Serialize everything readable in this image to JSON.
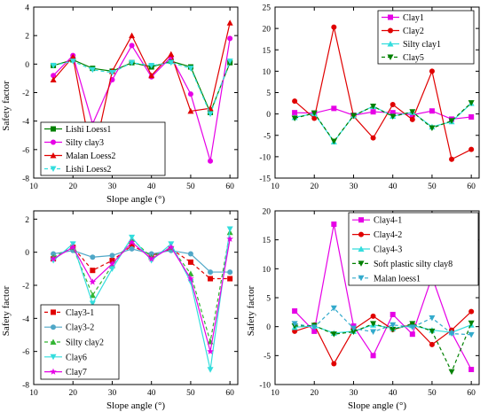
{
  "chart_data": [
    {
      "type": "line",
      "xlabel": "Slope angle  (°)",
      "ylabel": "Safety factor",
      "xlim": [
        10,
        62
      ],
      "ylim": [
        -8,
        4
      ],
      "xticks": [
        10,
        20,
        30,
        40,
        50,
        60
      ],
      "yticks": [
        -8,
        -6,
        -4,
        -2,
        0,
        2,
        4
      ],
      "legend_position": "bottom-left",
      "series": [
        {
          "name": "Lishi Loess1",
          "color": "#008000",
          "marker": "square",
          "dash": "",
          "x": [
            15,
            20,
            25,
            30,
            35,
            40,
            45,
            50,
            55,
            60
          ],
          "y": [
            -0.1,
            0.3,
            -0.3,
            -0.5,
            0.1,
            -0.2,
            0.2,
            -0.2,
            -3.4,
            0.1
          ]
        },
        {
          "name": "Silty clay3",
          "color": "#e600e6",
          "marker": "circle",
          "dash": "",
          "x": [
            15,
            20,
            25,
            30,
            35,
            40,
            45,
            50,
            55,
            60
          ],
          "y": [
            -0.8,
            0.6,
            -4.2,
            -1.1,
            1.3,
            -0.9,
            0.5,
            -2.1,
            -6.8,
            1.8
          ]
        },
        {
          "name": "Malan Loess2",
          "color": "#e00000",
          "marker": "triangle",
          "dash": "",
          "x": [
            15,
            20,
            25,
            30,
            35,
            40,
            45,
            50,
            55,
            60
          ],
          "y": [
            -1.1,
            0.5,
            -6.8,
            -0.5,
            2.0,
            -0.8,
            0.7,
            -3.3,
            -3.1,
            2.9
          ]
        },
        {
          "name": "Lishi Loess2",
          "color": "#33dddd",
          "marker": "triangle-down",
          "dash": "4,3",
          "x": [
            15,
            20,
            25,
            30,
            35,
            40,
            45,
            50,
            55,
            60
          ],
          "y": [
            -0.1,
            0.2,
            -0.4,
            -0.6,
            0.1,
            -0.1,
            0.1,
            -0.3,
            -3.5,
            0.2
          ]
        }
      ]
    },
    {
      "type": "line",
      "xlabel": "",
      "ylabel": "",
      "xlim": [
        10,
        62
      ],
      "ylim": [
        -15,
        25
      ],
      "xticks": [
        10,
        20,
        30,
        40,
        50,
        60
      ],
      "yticks": [
        -15,
        -10,
        -5,
        0,
        5,
        10,
        15,
        20,
        25
      ],
      "legend_position": "top-right",
      "series": [
        {
          "name": "Clay1",
          "color": "#e600e6",
          "marker": "square",
          "dash": "",
          "x": [
            15,
            20,
            25,
            30,
            35,
            40,
            45,
            50,
            55,
            60
          ],
          "y": [
            0.3,
            0.2,
            1.3,
            -0.3,
            0.5,
            0.3,
            -0.2,
            0.7,
            -1.2,
            -0.7
          ]
        },
        {
          "name": "Clay2",
          "color": "#e00000",
          "marker": "circle",
          "dash": "",
          "x": [
            15,
            20,
            25,
            30,
            35,
            40,
            45,
            50,
            55,
            60
          ],
          "y": [
            3.0,
            -1.0,
            20.3,
            -0.5,
            -5.6,
            2.2,
            -1.3,
            10.0,
            -10.6,
            -8.3
          ]
        },
        {
          "name": "Silty clay1",
          "color": "#33dddd",
          "marker": "triangle",
          "dash": "",
          "x": [
            15,
            20,
            25,
            30,
            35,
            40,
            45,
            50,
            55,
            60
          ],
          "y": [
            -0.8,
            0.1,
            -6.5,
            -0.4,
            1.8,
            -0.5,
            0.4,
            -3.0,
            -1.8,
            2.5
          ]
        },
        {
          "name": "Clay5",
          "color": "#008000",
          "marker": "triangle-down",
          "dash": "4,3",
          "x": [
            15,
            20,
            25,
            30,
            35,
            40,
            45,
            50,
            55,
            60
          ],
          "y": [
            -1.0,
            0.2,
            -6.4,
            -0.4,
            1.8,
            -0.6,
            0.5,
            -3.3,
            -1.6,
            2.6
          ]
        }
      ]
    },
    {
      "type": "line",
      "xlabel": "Slope angle  (°)",
      "ylabel": "Safety factor",
      "xlim": [
        10,
        62
      ],
      "ylim": [
        -8,
        2.5
      ],
      "xticks": [
        10,
        20,
        30,
        40,
        50,
        60
      ],
      "yticks": [
        -8,
        -6,
        -4,
        -2,
        0,
        2
      ],
      "legend_position": "bottom-left",
      "series": [
        {
          "name": "Clay3-1",
          "color": "#e00000",
          "marker": "square",
          "dash": "4,3",
          "x": [
            15,
            20,
            25,
            30,
            35,
            40,
            45,
            50,
            55,
            60
          ],
          "y": [
            -0.4,
            0.3,
            -1.1,
            -0.5,
            0.4,
            -0.2,
            0.2,
            -0.6,
            -1.6,
            -1.6
          ]
        },
        {
          "name": "Clay3-2",
          "color": "#4fa7c7",
          "marker": "circle",
          "dash": "",
          "x": [
            15,
            20,
            25,
            30,
            35,
            40,
            45,
            50,
            55,
            60
          ],
          "y": [
            -0.1,
            0.1,
            -0.3,
            -0.2,
            0.2,
            -0.1,
            0.1,
            -0.1,
            -1.2,
            -1.2
          ]
        },
        {
          "name": "Silty clay2",
          "color": "#33b533",
          "marker": "triangle",
          "dash": "4,3",
          "x": [
            15,
            20,
            25,
            30,
            35,
            40,
            45,
            50,
            55,
            60
          ],
          "y": [
            -0.3,
            0.3,
            -2.6,
            -0.8,
            0.8,
            -0.3,
            0.3,
            -1.3,
            -5.4,
            1.2
          ]
        },
        {
          "name": "Clay6",
          "color": "#33dddd",
          "marker": "triangle-down",
          "dash": "",
          "x": [
            15,
            20,
            25,
            30,
            35,
            40,
            45,
            50,
            55,
            60
          ],
          "y": [
            -0.5,
            0.5,
            -3.1,
            -1.0,
            0.9,
            -0.5,
            0.5,
            -1.8,
            -7.1,
            1.4
          ]
        },
        {
          "name": "Clay7",
          "color": "#e600e6",
          "marker": "star",
          "dash": "",
          "x": [
            15,
            20,
            25,
            30,
            35,
            40,
            45,
            50,
            55,
            60
          ],
          "y": [
            -0.4,
            0.3,
            -1.8,
            -0.7,
            0.6,
            -0.4,
            0.3,
            -1.6,
            -6.0,
            0.8
          ]
        }
      ]
    },
    {
      "type": "line",
      "xlabel": "Slope angle  (°)",
      "ylabel": "Safety factor",
      "xlim": [
        10,
        62
      ],
      "ylim": [
        -10,
        20
      ],
      "xticks": [
        10,
        20,
        30,
        40,
        50,
        60
      ],
      "yticks": [
        -10,
        -5,
        0,
        5,
        10,
        15,
        20
      ],
      "legend_position": "top-right",
      "series": [
        {
          "name": "Clay4-1",
          "color": "#e600e6",
          "marker": "square",
          "dash": "",
          "x": [
            15,
            20,
            25,
            30,
            35,
            40,
            45,
            50,
            55,
            60
          ],
          "y": [
            2.7,
            -0.8,
            17.7,
            0.1,
            -5.0,
            2.1,
            -1.3,
            8.6,
            -1.0,
            -7.4
          ]
        },
        {
          "name": "Clay4-2",
          "color": "#e00000",
          "marker": "circle",
          "dash": "",
          "x": [
            15,
            20,
            25,
            30,
            35,
            40,
            45,
            50,
            55,
            60
          ],
          "y": [
            -0.8,
            0.3,
            -6.4,
            -0.5,
            1.8,
            -0.5,
            0.4,
            -3.1,
            -0.6,
            2.6
          ]
        },
        {
          "name": "Clay4-3",
          "color": "#33dddd",
          "marker": "triangle",
          "dash": "",
          "x": [
            15,
            20,
            25,
            30,
            35,
            40,
            45,
            50,
            55,
            60
          ],
          "y": [
            -0.1,
            0.1,
            -1.1,
            -0.8,
            0.3,
            -0.3,
            0.2,
            -0.6,
            -1.0,
            0.3
          ]
        },
        {
          "name": "Soft plastic silty clay8",
          "color": "#008000",
          "marker": "triangle-down",
          "dash": "4,3",
          "x": [
            15,
            20,
            25,
            30,
            35,
            40,
            45,
            50,
            55,
            60
          ],
          "y": [
            0.1,
            0.2,
            -1.3,
            -0.9,
            0.5,
            -0.5,
            0.5,
            -0.8,
            -7.8,
            0.6
          ]
        },
        {
          "name": "Malan loess1",
          "color": "#33aacc",
          "marker": "triangle-down",
          "dash": "4,3",
          "x": [
            15,
            20,
            25,
            30,
            35,
            40,
            45,
            50,
            55,
            60
          ],
          "y": [
            0.5,
            -0.1,
            3.2,
            -0.3,
            -0.9,
            0.3,
            -0.1,
            1.5,
            -1.2,
            -1.4
          ]
        }
      ]
    }
  ]
}
